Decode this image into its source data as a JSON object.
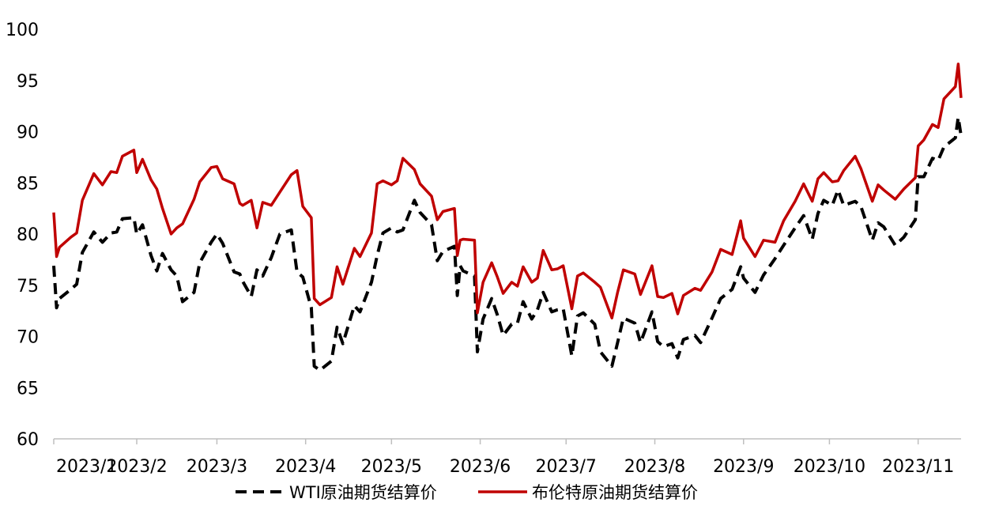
{
  "chart_data": {
    "type": "line",
    "title": "",
    "xlabel": "",
    "ylabel": "",
    "ylim": [
      60,
      100
    ],
    "yticks": [
      60,
      65,
      70,
      75,
      80,
      85,
      90,
      95,
      100
    ],
    "x_ticks": [
      "2023/1",
      "2023/2",
      "2023/3",
      "2023/4",
      "2023/5",
      "2023/6",
      "2023/7",
      "2023/8",
      "2023/9",
      "2023/10",
      "2023/11"
    ],
    "x_range": [
      "2023-01-03",
      "2023-11-16"
    ],
    "grid": false,
    "legend_position": "bottom",
    "series": [
      {
        "name": "WTI原油期货结算价",
        "color": "#000000",
        "style": "dashed",
        "points": [
          [
            "2023-01-03",
            76.9
          ],
          [
            "2023-01-04",
            72.8
          ],
          [
            "2023-01-05",
            73.7
          ],
          [
            "2023-01-09",
            74.6
          ],
          [
            "2023-01-11",
            75.1
          ],
          [
            "2023-01-13",
            78.2
          ],
          [
            "2023-01-17",
            80.2
          ],
          [
            "2023-01-20",
            79.2
          ],
          [
            "2023-01-23",
            80.1
          ],
          [
            "2023-01-25",
            80.2
          ],
          [
            "2023-01-27",
            81.5
          ],
          [
            "2023-01-31",
            81.6
          ],
          [
            "2023-02-01",
            80.0
          ],
          [
            "2023-02-03",
            80.9
          ],
          [
            "2023-02-06",
            77.9
          ],
          [
            "2023-02-08",
            76.4
          ],
          [
            "2023-02-10",
            78.1
          ],
          [
            "2023-02-13",
            76.5
          ],
          [
            "2023-02-15",
            75.9
          ],
          [
            "2023-02-17",
            73.4
          ],
          [
            "2023-02-21",
            74.3
          ],
          [
            "2023-02-23",
            77.2
          ],
          [
            "2023-02-27",
            79.2
          ],
          [
            "2023-03-01",
            80.0
          ],
          [
            "2023-03-03",
            79.1
          ],
          [
            "2023-03-07",
            76.3
          ],
          [
            "2023-03-09",
            76.1
          ],
          [
            "2023-03-10",
            75.4
          ],
          [
            "2023-03-13",
            73.9
          ],
          [
            "2023-03-15",
            76.5
          ],
          [
            "2023-03-17",
            75.9
          ],
          [
            "2023-03-20",
            77.7
          ],
          [
            "2023-03-23",
            80.0
          ],
          [
            "2023-03-27",
            80.4
          ],
          [
            "2023-03-29",
            76.3
          ],
          [
            "2023-03-31",
            75.8
          ],
          [
            "2023-04-03",
            72.8
          ],
          [
            "2023-04-04",
            67.1
          ],
          [
            "2023-04-06",
            66.7
          ],
          [
            "2023-04-10",
            67.6
          ],
          [
            "2023-04-12",
            70.9
          ],
          [
            "2023-04-14",
            69.3
          ],
          [
            "2023-04-18",
            73.0
          ],
          [
            "2023-04-20",
            72.4
          ],
          [
            "2023-04-24",
            75.3
          ],
          [
            "2023-04-26",
            77.9
          ],
          [
            "2023-04-28",
            80.1
          ],
          [
            "2023-05-01",
            80.6
          ],
          [
            "2023-05-03",
            80.2
          ],
          [
            "2023-05-05",
            80.4
          ],
          [
            "2023-05-09",
            83.3
          ],
          [
            "2023-05-11",
            82.1
          ],
          [
            "2023-05-15",
            80.9
          ],
          [
            "2023-05-17",
            77.4
          ],
          [
            "2023-05-19",
            78.3
          ],
          [
            "2023-05-23",
            78.8
          ],
          [
            "2023-05-24",
            74.0
          ],
          [
            "2023-05-25",
            76.9
          ],
          [
            "2023-05-26",
            76.4
          ],
          [
            "2023-05-30",
            75.9
          ],
          [
            "2023-05-31",
            68.5
          ],
          [
            "2023-06-02",
            71.7
          ],
          [
            "2023-06-05",
            73.7
          ],
          [
            "2023-06-07",
            72.1
          ],
          [
            "2023-06-09",
            70.1
          ],
          [
            "2023-06-12",
            71.2
          ],
          [
            "2023-06-14",
            71.3
          ],
          [
            "2023-06-16",
            73.4
          ],
          [
            "2023-06-19",
            71.7
          ],
          [
            "2023-06-21",
            72.6
          ],
          [
            "2023-06-23",
            74.3
          ],
          [
            "2023-06-26",
            72.4
          ],
          [
            "2023-06-28",
            72.6
          ],
          [
            "2023-06-30",
            72.7
          ],
          [
            "2023-07-03",
            68.1
          ],
          [
            "2023-07-05",
            72.0
          ],
          [
            "2023-07-07",
            72.3
          ],
          [
            "2023-07-11",
            71.2
          ],
          [
            "2023-07-13",
            68.5
          ],
          [
            "2023-07-17",
            67.1
          ],
          [
            "2023-07-19",
            69.4
          ],
          [
            "2023-07-21",
            71.8
          ],
          [
            "2023-07-25",
            71.3
          ],
          [
            "2023-07-27",
            69.4
          ],
          [
            "2023-07-31",
            72.4
          ],
          [
            "2023-08-02",
            69.5
          ],
          [
            "2023-08-04",
            69.0
          ],
          [
            "2023-08-07",
            69.3
          ],
          [
            "2023-08-09",
            67.9
          ],
          [
            "2023-08-11",
            69.7
          ],
          [
            "2023-08-15",
            70.1
          ],
          [
            "2023-08-17",
            69.4
          ],
          [
            "2023-08-21",
            71.8
          ],
          [
            "2023-08-24",
            73.7
          ],
          [
            "2023-08-28",
            74.6
          ],
          [
            "2023-08-31",
            76.8
          ],
          [
            "2023-09-01",
            75.7
          ],
          [
            "2023-09-05",
            74.3
          ],
          [
            "2023-09-08",
            76.0
          ],
          [
            "2023-09-12",
            77.6
          ],
          [
            "2023-09-15",
            78.9
          ],
          [
            "2023-09-19",
            80.6
          ],
          [
            "2023-09-22",
            81.8
          ],
          [
            "2023-09-25",
            79.5
          ],
          [
            "2023-09-27",
            82.0
          ],
          [
            "2023-09-29",
            83.3
          ],
          [
            "2023-10-02",
            82.8
          ],
          [
            "2023-10-04",
            84.3
          ],
          [
            "2023-10-06",
            82.8
          ],
          [
            "2023-10-10",
            83.2
          ],
          [
            "2023-10-12",
            82.7
          ],
          [
            "2023-10-16",
            79.4
          ],
          [
            "2023-10-18",
            81.1
          ],
          [
            "2023-10-20",
            80.7
          ],
          [
            "2023-10-24",
            78.9
          ],
          [
            "2023-10-27",
            79.7
          ],
          [
            "2023-10-31",
            81.4
          ],
          [
            "2023-11-01",
            85.6
          ],
          [
            "2023-11-03",
            85.6
          ],
          [
            "2023-11-06",
            87.4
          ],
          [
            "2023-11-08",
            87.2
          ],
          [
            "2023-11-10",
            88.5
          ],
          [
            "2023-11-14",
            89.4
          ],
          [
            "2023-11-15",
            91.4
          ],
          [
            "2023-11-16",
            89.6
          ]
        ]
      },
      {
        "name": "布伦特原油期货结算价",
        "color": "#c00000",
        "style": "solid",
        "points": [
          [
            "2023-01-03",
            82.1
          ],
          [
            "2023-01-04",
            77.8
          ],
          [
            "2023-01-05",
            78.7
          ],
          [
            "2023-01-09",
            79.7
          ],
          [
            "2023-01-11",
            80.1
          ],
          [
            "2023-01-13",
            83.3
          ],
          [
            "2023-01-17",
            85.9
          ],
          [
            "2023-01-20",
            84.8
          ],
          [
            "2023-01-23",
            86.1
          ],
          [
            "2023-01-25",
            86.0
          ],
          [
            "2023-01-27",
            87.6
          ],
          [
            "2023-01-31",
            88.2
          ],
          [
            "2023-02-01",
            86.0
          ],
          [
            "2023-02-03",
            87.3
          ],
          [
            "2023-02-06",
            85.3
          ],
          [
            "2023-02-08",
            84.4
          ],
          [
            "2023-02-10",
            82.5
          ],
          [
            "2023-02-13",
            80.0
          ],
          [
            "2023-02-15",
            80.6
          ],
          [
            "2023-02-17",
            81.0
          ],
          [
            "2023-02-21",
            83.4
          ],
          [
            "2023-02-23",
            85.1
          ],
          [
            "2023-02-27",
            86.5
          ],
          [
            "2023-03-01",
            86.6
          ],
          [
            "2023-03-03",
            85.4
          ],
          [
            "2023-03-07",
            84.9
          ],
          [
            "2023-03-09",
            83.0
          ],
          [
            "2023-03-10",
            82.8
          ],
          [
            "2023-03-13",
            83.3
          ],
          [
            "2023-03-15",
            80.6
          ],
          [
            "2023-03-17",
            83.1
          ],
          [
            "2023-03-20",
            82.8
          ],
          [
            "2023-03-23",
            84.1
          ],
          [
            "2023-03-27",
            85.8
          ],
          [
            "2023-03-29",
            86.2
          ],
          [
            "2023-03-31",
            82.7
          ],
          [
            "2023-04-03",
            81.6
          ],
          [
            "2023-04-04",
            73.7
          ],
          [
            "2023-04-06",
            73.1
          ],
          [
            "2023-04-10",
            73.8
          ],
          [
            "2023-04-12",
            76.8
          ],
          [
            "2023-04-14",
            75.1
          ],
          [
            "2023-04-18",
            78.6
          ],
          [
            "2023-04-20",
            77.8
          ],
          [
            "2023-04-24",
            80.1
          ],
          [
            "2023-04-26",
            84.9
          ],
          [
            "2023-04-28",
            85.2
          ],
          [
            "2023-05-01",
            84.8
          ],
          [
            "2023-05-03",
            85.2
          ],
          [
            "2023-05-05",
            87.4
          ],
          [
            "2023-05-09",
            86.3
          ],
          [
            "2023-05-11",
            84.9
          ],
          [
            "2023-05-15",
            83.7
          ],
          [
            "2023-05-17",
            81.4
          ],
          [
            "2023-05-19",
            82.2
          ],
          [
            "2023-05-23",
            82.5
          ],
          [
            "2023-05-24",
            77.9
          ],
          [
            "2023-05-25",
            79.4
          ],
          [
            "2023-05-26",
            79.5
          ],
          [
            "2023-05-30",
            79.4
          ],
          [
            "2023-05-31",
            72.3
          ],
          [
            "2023-06-02",
            75.3
          ],
          [
            "2023-06-05",
            77.2
          ],
          [
            "2023-06-07",
            75.8
          ],
          [
            "2023-06-09",
            74.2
          ],
          [
            "2023-06-12",
            75.3
          ],
          [
            "2023-06-14",
            74.9
          ],
          [
            "2023-06-16",
            76.8
          ],
          [
            "2023-06-19",
            75.3
          ],
          [
            "2023-06-21",
            75.7
          ],
          [
            "2023-06-23",
            78.4
          ],
          [
            "2023-06-26",
            76.5
          ],
          [
            "2023-06-28",
            76.6
          ],
          [
            "2023-06-30",
            76.9
          ],
          [
            "2023-07-03",
            72.7
          ],
          [
            "2023-07-05",
            75.9
          ],
          [
            "2023-07-07",
            76.2
          ],
          [
            "2023-07-11",
            75.3
          ],
          [
            "2023-07-13",
            74.8
          ],
          [
            "2023-07-17",
            71.8
          ],
          [
            "2023-07-19",
            74.3
          ],
          [
            "2023-07-21",
            76.5
          ],
          [
            "2023-07-25",
            76.1
          ],
          [
            "2023-07-27",
            74.1
          ],
          [
            "2023-07-31",
            76.9
          ],
          [
            "2023-08-02",
            73.9
          ],
          [
            "2023-08-04",
            73.8
          ],
          [
            "2023-08-07",
            74.2
          ],
          [
            "2023-08-09",
            72.2
          ],
          [
            "2023-08-11",
            74.0
          ],
          [
            "2023-08-15",
            74.7
          ],
          [
            "2023-08-17",
            74.5
          ],
          [
            "2023-08-21",
            76.3
          ],
          [
            "2023-08-24",
            78.5
          ],
          [
            "2023-08-28",
            78.0
          ],
          [
            "2023-08-31",
            81.3
          ],
          [
            "2023-09-01",
            79.6
          ],
          [
            "2023-09-05",
            77.8
          ],
          [
            "2023-09-08",
            79.4
          ],
          [
            "2023-09-12",
            79.2
          ],
          [
            "2023-09-15",
            81.3
          ],
          [
            "2023-09-19",
            83.2
          ],
          [
            "2023-09-22",
            84.9
          ],
          [
            "2023-09-25",
            83.2
          ],
          [
            "2023-09-27",
            85.4
          ],
          [
            "2023-09-29",
            86.0
          ],
          [
            "2023-10-02",
            85.1
          ],
          [
            "2023-10-04",
            85.2
          ],
          [
            "2023-10-06",
            86.2
          ],
          [
            "2023-10-10",
            87.6
          ],
          [
            "2023-10-12",
            86.4
          ],
          [
            "2023-10-16",
            83.2
          ],
          [
            "2023-10-18",
            84.8
          ],
          [
            "2023-10-20",
            84.3
          ],
          [
            "2023-10-24",
            83.4
          ],
          [
            "2023-10-27",
            84.4
          ],
          [
            "2023-10-31",
            85.5
          ],
          [
            "2023-11-01",
            88.6
          ],
          [
            "2023-11-03",
            89.2
          ],
          [
            "2023-11-06",
            90.7
          ],
          [
            "2023-11-08",
            90.4
          ],
          [
            "2023-11-10",
            93.2
          ],
          [
            "2023-11-14",
            94.4
          ],
          [
            "2023-11-15",
            96.6
          ],
          [
            "2023-11-16",
            93.3
          ]
        ]
      }
    ]
  }
}
